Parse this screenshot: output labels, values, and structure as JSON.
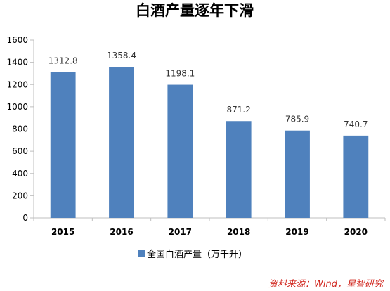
{
  "chart_data": {
    "type": "bar",
    "title": "白酒产量逐年下滑",
    "categories": [
      "2015",
      "2016",
      "2017",
      "2018",
      "2019",
      "2020"
    ],
    "series": [
      {
        "name": "全国白酒产量（万千升）",
        "values": [
          1312.8,
          1358.4,
          1198.1,
          871.2,
          785.9,
          740.7
        ],
        "labels": [
          "1312.8",
          "1358.4",
          "1198.1",
          "871.2",
          "785.9",
          "740.7"
        ],
        "color": "#4f81bd"
      }
    ],
    "y_ticks": [
      "0",
      "200",
      "400",
      "600",
      "800",
      "1000",
      "1200",
      "1400",
      "1600"
    ],
    "ylim": [
      0,
      1600
    ],
    "grid": false,
    "legend_position": "bottom-center",
    "xlabel": "",
    "ylabel": ""
  },
  "source_note": "资料来源：Wind，星智研究"
}
